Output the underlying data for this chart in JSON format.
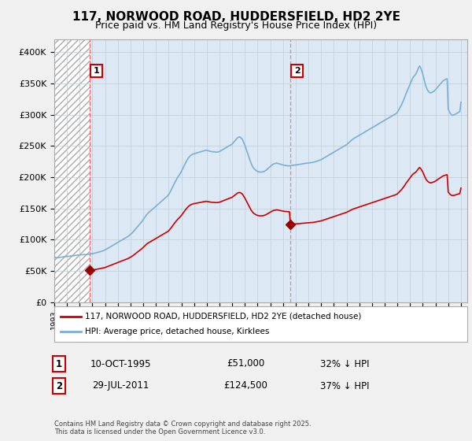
{
  "title": "117, NORWOOD ROAD, HUDDERSFIELD, HD2 2YE",
  "subtitle": "Price paid vs. HM Land Registry's House Price Index (HPI)",
  "title_fontsize": 11,
  "subtitle_fontsize": 9,
  "ylabel_ticks": [
    "£0",
    "£50K",
    "£100K",
    "£150K",
    "£200K",
    "£250K",
    "£300K",
    "£350K",
    "£400K"
  ],
  "ytick_values": [
    0,
    50000,
    100000,
    150000,
    200000,
    250000,
    300000,
    350000,
    400000
  ],
  "ylim": [
    0,
    420000
  ],
  "xlim_start": 1993.0,
  "xlim_end": 2025.5,
  "sale1_x": 1995.78,
  "sale1_y": 51000,
  "sale2_x": 2011.57,
  "sale2_y": 124500,
  "sale_color": "#cc0000",
  "hpi_color": "#7aafd4",
  "marker_color": "#990000",
  "vline1_x": 1995.78,
  "vline2_x": 2011.57,
  "vline1_color": "#ff6666",
  "vline2_color": "#cc9999",
  "plot_bg_color": "#dce9f5",
  "hatch_bg_color": "white",
  "between_sales_color": "#dce9f5",
  "legend_line1": "117, NORWOOD ROAD, HUDDERSFIELD, HD2 2YE (detached house)",
  "legend_line2": "HPI: Average price, detached house, Kirklees",
  "table_row1_num": "1",
  "table_row1_date": "10-OCT-1995",
  "table_row1_price": "£51,000",
  "table_row1_hpi": "32% ↓ HPI",
  "table_row2_num": "2",
  "table_row2_date": "29-JUL-2011",
  "table_row2_price": "£124,500",
  "table_row2_hpi": "37% ↓ HPI",
  "footnote": "Contains HM Land Registry data © Crown copyright and database right 2025.\nThis data is licensed under the Open Government Licence v3.0.",
  "bg_color": "#f0f0f0",
  "grid_color": "#c0ccd8",
  "num_box_color": "#cc0000",
  "hpi_data_x": [
    1993.0,
    1993.083,
    1993.167,
    1993.25,
    1993.333,
    1993.417,
    1993.5,
    1993.583,
    1993.667,
    1993.75,
    1993.833,
    1993.917,
    1994.0,
    1994.083,
    1994.167,
    1994.25,
    1994.333,
    1994.417,
    1994.5,
    1994.583,
    1994.667,
    1994.75,
    1994.833,
    1994.917,
    1995.0,
    1995.083,
    1995.167,
    1995.25,
    1995.333,
    1995.417,
    1995.5,
    1995.583,
    1995.667,
    1995.75,
    1995.833,
    1995.917,
    1996.0,
    1996.083,
    1996.167,
    1996.25,
    1996.333,
    1996.417,
    1996.5,
    1996.583,
    1996.667,
    1996.75,
    1996.833,
    1996.917,
    1997.0,
    1997.083,
    1997.167,
    1997.25,
    1997.333,
    1997.417,
    1997.5,
    1997.583,
    1997.667,
    1997.75,
    1997.833,
    1997.917,
    1998.0,
    1998.083,
    1998.167,
    1998.25,
    1998.333,
    1998.417,
    1998.5,
    1998.583,
    1998.667,
    1998.75,
    1998.833,
    1998.917,
    1999.0,
    1999.083,
    1999.167,
    1999.25,
    1999.333,
    1999.417,
    1999.5,
    1999.583,
    1999.667,
    1999.75,
    1999.833,
    1999.917,
    2000.0,
    2000.083,
    2000.167,
    2000.25,
    2000.333,
    2000.417,
    2000.5,
    2000.583,
    2000.667,
    2000.75,
    2000.833,
    2000.917,
    2001.0,
    2001.083,
    2001.167,
    2001.25,
    2001.333,
    2001.417,
    2001.5,
    2001.583,
    2001.667,
    2001.75,
    2001.833,
    2001.917,
    2002.0,
    2002.083,
    2002.167,
    2002.25,
    2002.333,
    2002.417,
    2002.5,
    2002.583,
    2002.667,
    2002.75,
    2002.833,
    2002.917,
    2003.0,
    2003.083,
    2003.167,
    2003.25,
    2003.333,
    2003.417,
    2003.5,
    2003.583,
    2003.667,
    2003.75,
    2003.833,
    2003.917,
    2004.0,
    2004.083,
    2004.167,
    2004.25,
    2004.333,
    2004.417,
    2004.5,
    2004.583,
    2004.667,
    2004.75,
    2004.833,
    2004.917,
    2005.0,
    2005.083,
    2005.167,
    2005.25,
    2005.333,
    2005.417,
    2005.5,
    2005.583,
    2005.667,
    2005.75,
    2005.833,
    2005.917,
    2006.0,
    2006.083,
    2006.167,
    2006.25,
    2006.333,
    2006.417,
    2006.5,
    2006.583,
    2006.667,
    2006.75,
    2006.833,
    2006.917,
    2007.0,
    2007.083,
    2007.167,
    2007.25,
    2007.333,
    2007.417,
    2007.5,
    2007.583,
    2007.667,
    2007.75,
    2007.833,
    2007.917,
    2008.0,
    2008.083,
    2008.167,
    2008.25,
    2008.333,
    2008.417,
    2008.5,
    2008.583,
    2008.667,
    2008.75,
    2008.833,
    2008.917,
    2009.0,
    2009.083,
    2009.167,
    2009.25,
    2009.333,
    2009.417,
    2009.5,
    2009.583,
    2009.667,
    2009.75,
    2009.833,
    2009.917,
    2010.0,
    2010.083,
    2010.167,
    2010.25,
    2010.333,
    2010.417,
    2010.5,
    2010.583,
    2010.667,
    2010.75,
    2010.833,
    2010.917,
    2011.0,
    2011.083,
    2011.167,
    2011.25,
    2011.333,
    2011.417,
    2011.5,
    2011.583,
    2011.667,
    2011.75,
    2011.833,
    2011.917,
    2012.0,
    2012.083,
    2012.167,
    2012.25,
    2012.333,
    2012.417,
    2012.5,
    2012.583,
    2012.667,
    2012.75,
    2012.833,
    2012.917,
    2013.0,
    2013.083,
    2013.167,
    2013.25,
    2013.333,
    2013.417,
    2013.5,
    2013.583,
    2013.667,
    2013.75,
    2013.833,
    2013.917,
    2014.0,
    2014.083,
    2014.167,
    2014.25,
    2014.333,
    2014.417,
    2014.5,
    2014.583,
    2014.667,
    2014.75,
    2014.833,
    2014.917,
    2015.0,
    2015.083,
    2015.167,
    2015.25,
    2015.333,
    2015.417,
    2015.5,
    2015.583,
    2015.667,
    2015.75,
    2015.833,
    2015.917,
    2016.0,
    2016.083,
    2016.167,
    2016.25,
    2016.333,
    2016.417,
    2016.5,
    2016.583,
    2016.667,
    2016.75,
    2016.833,
    2016.917,
    2017.0,
    2017.083,
    2017.167,
    2017.25,
    2017.333,
    2017.417,
    2017.5,
    2017.583,
    2017.667,
    2017.75,
    2017.833,
    2017.917,
    2018.0,
    2018.083,
    2018.167,
    2018.25,
    2018.333,
    2018.417,
    2018.5,
    2018.583,
    2018.667,
    2018.75,
    2018.833,
    2018.917,
    2019.0,
    2019.083,
    2019.167,
    2019.25,
    2019.333,
    2019.417,
    2019.5,
    2019.583,
    2019.667,
    2019.75,
    2019.833,
    2019.917,
    2020.0,
    2020.083,
    2020.167,
    2020.25,
    2020.333,
    2020.417,
    2020.5,
    2020.583,
    2020.667,
    2020.75,
    2020.833,
    2020.917,
    2021.0,
    2021.083,
    2021.167,
    2021.25,
    2021.333,
    2021.417,
    2021.5,
    2021.583,
    2021.667,
    2021.75,
    2021.833,
    2021.917,
    2022.0,
    2022.083,
    2022.167,
    2022.25,
    2022.333,
    2022.417,
    2022.5,
    2022.583,
    2022.667,
    2022.75,
    2022.833,
    2022.917,
    2023.0,
    2023.083,
    2023.167,
    2023.25,
    2023.333,
    2023.417,
    2023.5,
    2023.583,
    2023.667,
    2023.75,
    2023.833,
    2023.917,
    2024.0,
    2024.083,
    2024.167,
    2024.25,
    2024.333,
    2024.417,
    2024.5,
    2024.583,
    2024.667,
    2024.75,
    2024.833,
    2024.917,
    2025.0
  ],
  "hpi_data_y": [
    72000,
    71500,
    71200,
    71000,
    71200,
    71500,
    71800,
    72000,
    72300,
    72500,
    72700,
    73000,
    73200,
    73400,
    73500,
    73600,
    73700,
    73900,
    74200,
    74500,
    74700,
    75000,
    75200,
    75300,
    75500,
    75600,
    75700,
    75800,
    75900,
    76000,
    76200,
    76400,
    76600,
    76800,
    77000,
    77200,
    77500,
    77800,
    78200,
    78700,
    79200,
    79700,
    80100,
    80500,
    81000,
    81500,
    82000,
    82800,
    83500,
    84500,
    85500,
    86500,
    87500,
    88500,
    89500,
    90500,
    91500,
    92500,
    93500,
    94500,
    95500,
    96500,
    97500,
    98500,
    99500,
    100500,
    101500,
    102500,
    103500,
    104500,
    105500,
    107000,
    108500,
    110000,
    111500,
    113500,
    115500,
    117500,
    119500,
    121500,
    123500,
    125500,
    127500,
    129500,
    132000,
    134500,
    137000,
    139500,
    141500,
    143000,
    144500,
    146000,
    147500,
    149000,
    150500,
    152000,
    153500,
    155000,
    156500,
    158000,
    159500,
    161000,
    162500,
    164000,
    165500,
    167000,
    168500,
    170000,
    172000,
    175000,
    178000,
    181500,
    185000,
    188500,
    192000,
    195000,
    198000,
    201000,
    203500,
    206000,
    209000,
    212500,
    216000,
    219500,
    223000,
    226000,
    229000,
    231500,
    233500,
    235000,
    236000,
    237000,
    237500,
    238000,
    238500,
    239000,
    239500,
    240000,
    240500,
    241000,
    241500,
    242000,
    242500,
    243000,
    243000,
    242500,
    242000,
    241500,
    241000,
    240800,
    240600,
    240400,
    240200,
    240000,
    240200,
    240500,
    241000,
    242000,
    243000,
    244000,
    245000,
    246000,
    247000,
    248000,
    249000,
    250000,
    251000,
    252000,
    253000,
    255000,
    257000,
    259000,
    261000,
    263000,
    264000,
    264500,
    263500,
    262000,
    259000,
    255000,
    251000,
    246000,
    241000,
    236000,
    231000,
    226000,
    221500,
    218000,
    215000,
    213000,
    211500,
    210000,
    209000,
    208500,
    208200,
    208000,
    208200,
    208500,
    209000,
    210000,
    211000,
    212500,
    214000,
    215500,
    217000,
    218500,
    220000,
    221000,
    221500,
    222000,
    222500,
    222000,
    221500,
    221000,
    220500,
    220000,
    219500,
    219000,
    218700,
    218400,
    218200,
    218000,
    218200,
    218400,
    218600,
    218800,
    219000,
    219200,
    219500,
    219700,
    220000,
    220300,
    220600,
    220900,
    221200,
    221500,
    221800,
    222000,
    222200,
    222400,
    222600,
    222800,
    223000,
    223300,
    223600,
    224000,
    224400,
    225000,
    225600,
    226200,
    226800,
    227400,
    228000,
    229000,
    230000,
    231000,
    232000,
    233000,
    234000,
    235000,
    236000,
    237000,
    238000,
    239000,
    240000,
    241000,
    242000,
    243000,
    244000,
    245000,
    246000,
    247000,
    248000,
    249000,
    250000,
    251000,
    252000,
    253500,
    255000,
    256500,
    258000,
    259500,
    261000,
    262000,
    263000,
    264000,
    265000,
    266000,
    267000,
    268000,
    269000,
    270000,
    271000,
    272000,
    273000,
    274000,
    275000,
    276000,
    277000,
    278000,
    279000,
    280000,
    281000,
    282000,
    283000,
    284000,
    285000,
    286000,
    287000,
    288000,
    289000,
    290000,
    291000,
    292000,
    293000,
    294000,
    295000,
    296000,
    297000,
    298000,
    299000,
    300000,
    301000,
    302000,
    304000,
    307000,
    310000,
    313000,
    316000,
    320000,
    324000,
    328000,
    333000,
    337000,
    341000,
    345000,
    349000,
    353000,
    357000,
    360000,
    362000,
    364000,
    367000,
    371000,
    375000,
    378000,
    375000,
    370000,
    365000,
    358000,
    351000,
    345000,
    341000,
    338000,
    336000,
    335000,
    335000,
    336000,
    337000,
    338000,
    340000,
    342000,
    344000,
    346000,
    348000,
    350000,
    352000,
    354000,
    355000,
    356000,
    357000,
    357500,
    309000,
    305000,
    302000,
    300000,
    299000,
    299500,
    300000,
    301000,
    302000,
    303000,
    304000,
    305000,
    320000
  ]
}
